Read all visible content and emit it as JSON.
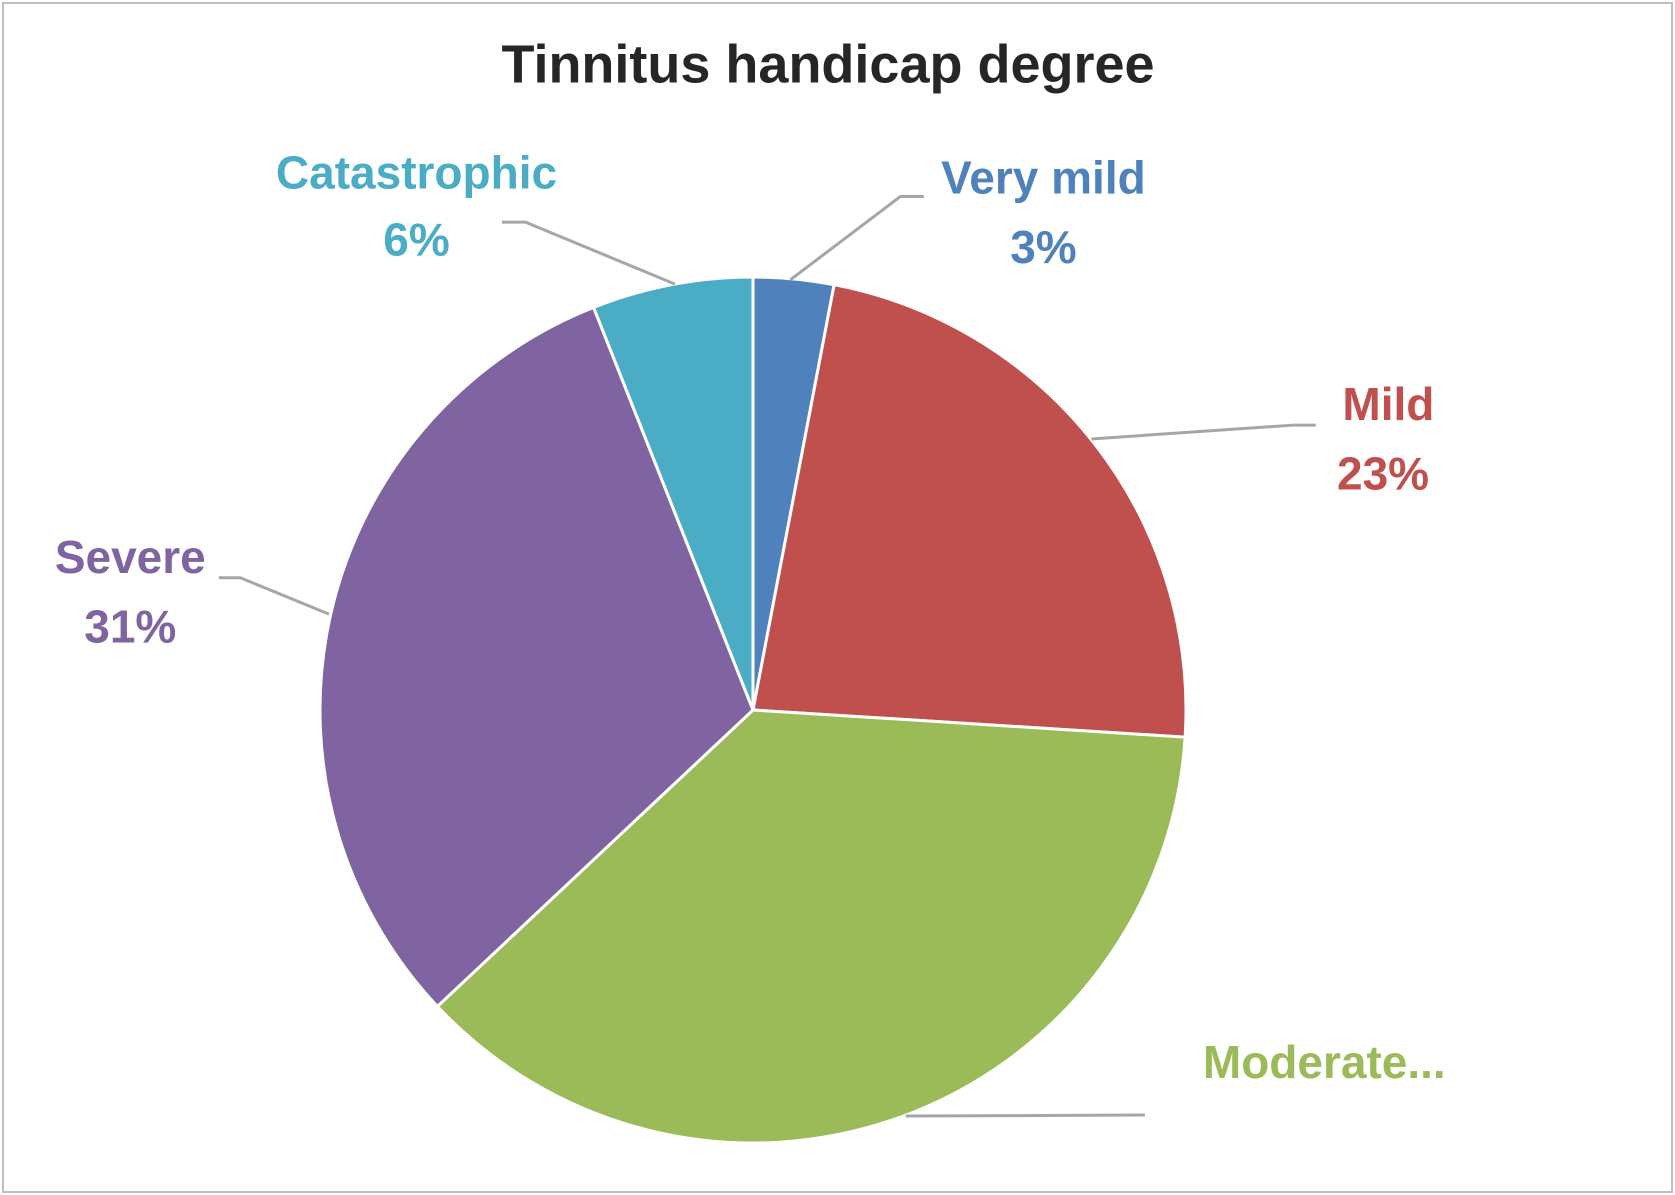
{
  "chart_data": {
    "type": "pie",
    "title": "Tinnitus handicap degree",
    "categories": [
      "Very mild",
      "Mild",
      "Moderate...",
      "Severe",
      "Catastrophic"
    ],
    "values": [
      3,
      23,
      37,
      31,
      6
    ],
    "value_labels": [
      "3%",
      "23%",
      null,
      "31%",
      "6%"
    ],
    "colors": [
      "#4f81bd",
      "#c0504d",
      "#9bbb59",
      "#8064a2",
      "#4bacc6"
    ]
  }
}
